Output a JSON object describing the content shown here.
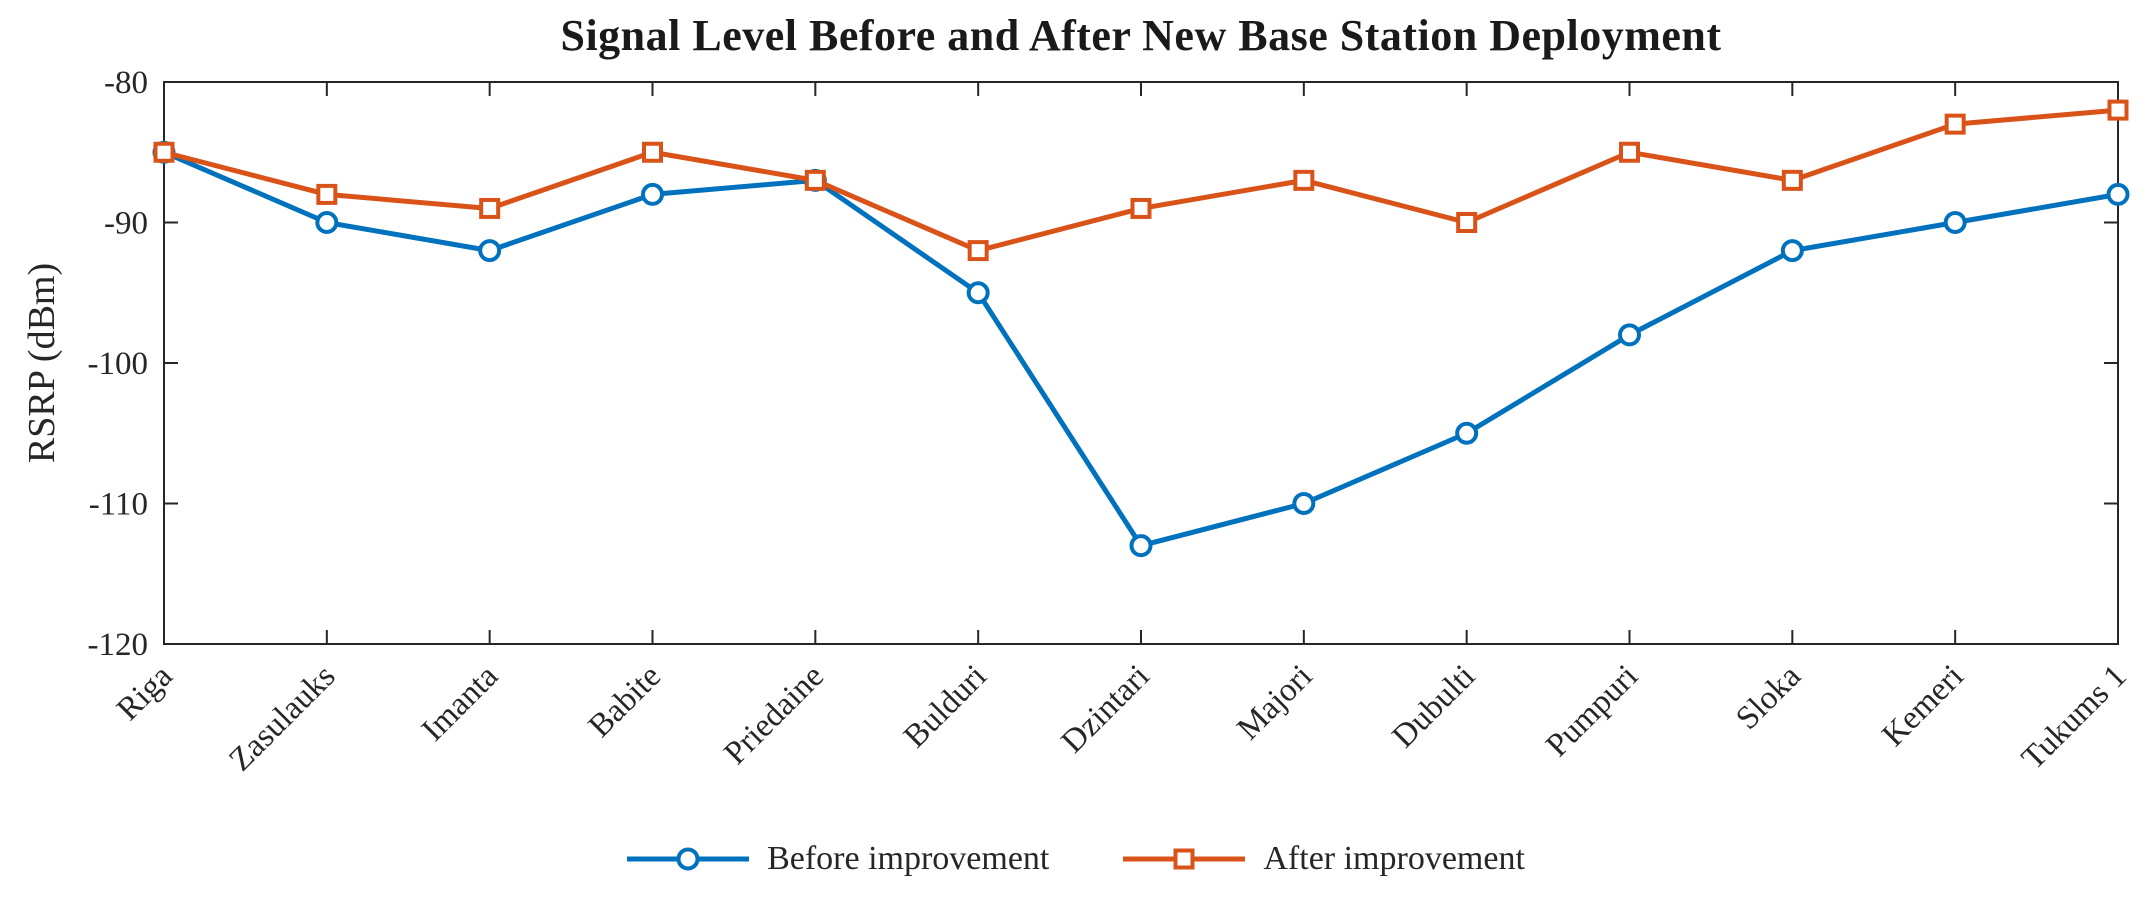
{
  "figure": {
    "background": "#ffffff",
    "axis_color": "#262626"
  },
  "chart_data": {
    "type": "line",
    "title": "Signal Level Before and After New Base Station Deployment",
    "xlabel": "",
    "ylabel": "RSRP (dBm)",
    "categories": [
      "Riga",
      "Zasulauks",
      "Imanta",
      "Babite",
      "Priedaine",
      "Bulduri",
      "Dzintari",
      "Majori",
      "Dubulti",
      "Pumpuri",
      "Sloka",
      "Kemeri",
      "Tukums 1"
    ],
    "series": [
      {
        "name": "Before improvement",
        "color": "#0072BD",
        "marker": "circle",
        "values": [
          -85,
          -90,
          -92,
          -88,
          -87,
          -95,
          -113,
          -110,
          -105,
          -98,
          -92,
          -90,
          -88
        ]
      },
      {
        "name": "After improvement",
        "color": "#D95319",
        "marker": "square",
        "values": [
          -85,
          -88,
          -89,
          -85,
          -87,
          -92,
          -89,
          -87,
          -90,
          -85,
          -87,
          -83,
          -82
        ]
      }
    ],
    "ylim": [
      -120,
      -80
    ],
    "yticks": [
      -80,
      -90,
      -100,
      -110,
      -120
    ],
    "grid": false,
    "legend_position": "bottom-center",
    "x_tick_angle": 45
  }
}
